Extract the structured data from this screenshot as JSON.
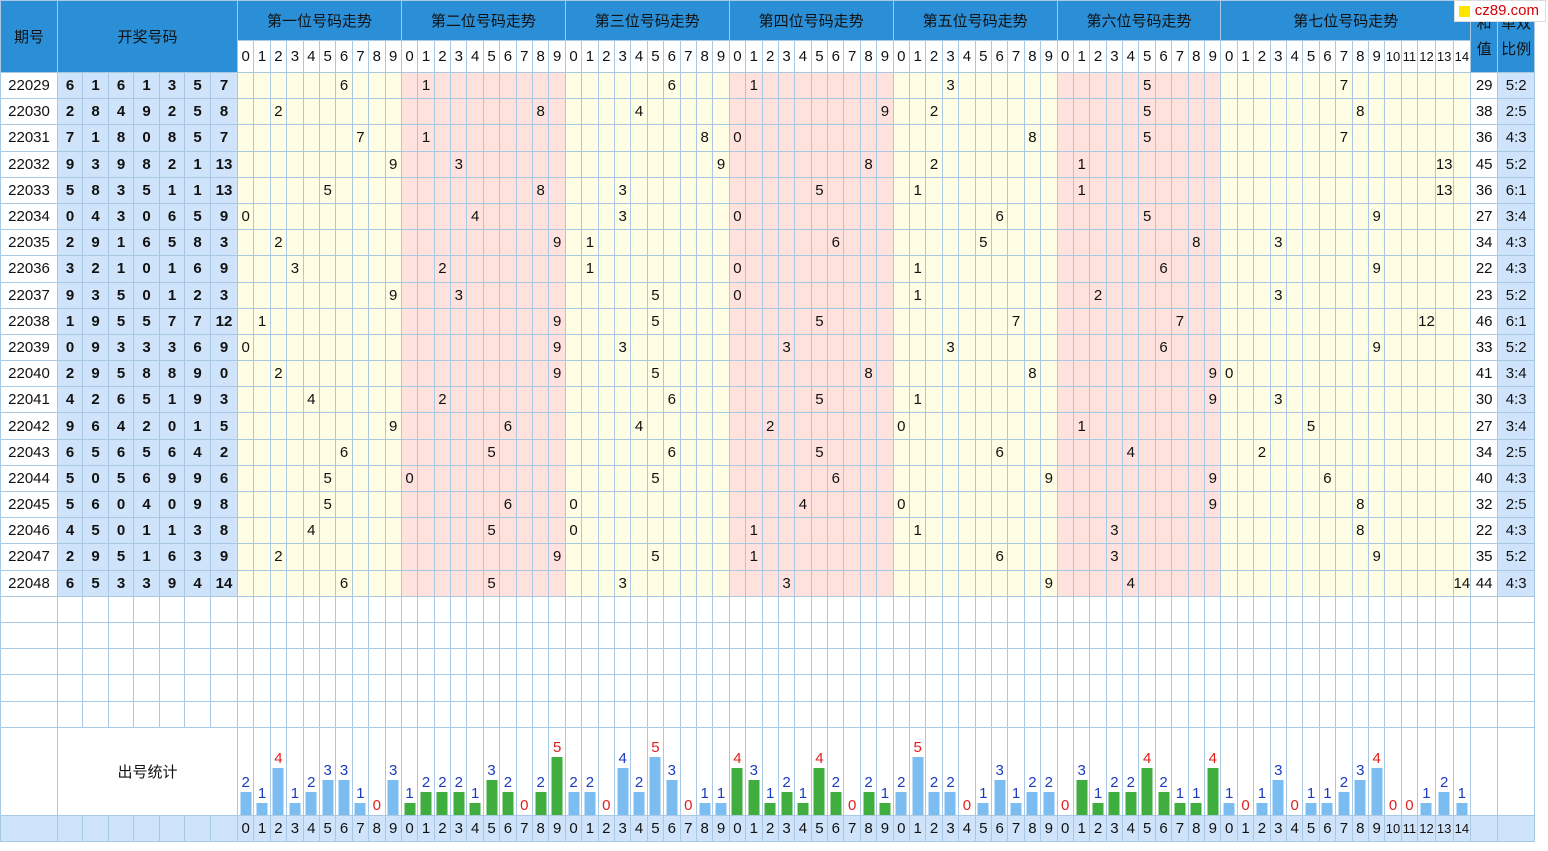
{
  "logo": "cz89.com",
  "headers": {
    "period": "期号",
    "draw": "开奖号码",
    "sum": "和值",
    "ratio": "单双比例",
    "stats": "出号统计"
  },
  "positions": [
    {
      "title": "第一位号码走势",
      "digits": [
        "0",
        "1",
        "2",
        "3",
        "4",
        "5",
        "6",
        "7",
        "8",
        "9"
      ],
      "tint": "#fffde3"
    },
    {
      "title": "第二位号码走势",
      "digits": [
        "0",
        "1",
        "2",
        "3",
        "4",
        "5",
        "6",
        "7",
        "8",
        "9"
      ],
      "tint": "#ffe2de"
    },
    {
      "title": "第三位号码走势",
      "digits": [
        "0",
        "1",
        "2",
        "3",
        "4",
        "5",
        "6",
        "7",
        "8",
        "9"
      ],
      "tint": "#fffde3"
    },
    {
      "title": "第四位号码走势",
      "digits": [
        "0",
        "1",
        "2",
        "3",
        "4",
        "5",
        "6",
        "7",
        "8",
        "9"
      ],
      "tint": "#ffe2de"
    },
    {
      "title": "第五位号码走势",
      "digits": [
        "0",
        "1",
        "2",
        "3",
        "4",
        "5",
        "6",
        "7",
        "8",
        "9"
      ],
      "tint": "#fffde3"
    },
    {
      "title": "第六位号码走势",
      "digits": [
        "0",
        "1",
        "2",
        "3",
        "4",
        "5",
        "6",
        "7",
        "8",
        "9"
      ],
      "tint": "#ffe2de"
    },
    {
      "title": "第七位号码走势",
      "digits": [
        "0",
        "1",
        "2",
        "3",
        "4",
        "5",
        "6",
        "7",
        "8",
        "9",
        "10",
        "11",
        "12",
        "13",
        "14"
      ],
      "tint": "#fffde3"
    }
  ],
  "rows": [
    {
      "period": "22029",
      "nums": [
        "6",
        "1",
        "6",
        "1",
        "3",
        "5",
        "7"
      ],
      "sum": "29",
      "ratio": "5:2"
    },
    {
      "period": "22030",
      "nums": [
        "2",
        "8",
        "4",
        "9",
        "2",
        "5",
        "8"
      ],
      "sum": "38",
      "ratio": "2:5"
    },
    {
      "period": "22031",
      "nums": [
        "7",
        "1",
        "8",
        "0",
        "8",
        "5",
        "7"
      ],
      "sum": "36",
      "ratio": "4:3"
    },
    {
      "period": "22032",
      "nums": [
        "9",
        "3",
        "9",
        "8",
        "2",
        "1",
        "13"
      ],
      "sum": "45",
      "ratio": "5:2"
    },
    {
      "period": "22033",
      "nums": [
        "5",
        "8",
        "3",
        "5",
        "1",
        "1",
        "13"
      ],
      "sum": "36",
      "ratio": "6:1"
    },
    {
      "period": "22034",
      "nums": [
        "0",
        "4",
        "3",
        "0",
        "6",
        "5",
        "9"
      ],
      "sum": "27",
      "ratio": "3:4"
    },
    {
      "period": "22035",
      "nums": [
        "2",
        "9",
        "1",
        "6",
        "5",
        "8",
        "3"
      ],
      "sum": "34",
      "ratio": "4:3"
    },
    {
      "period": "22036",
      "nums": [
        "3",
        "2",
        "1",
        "0",
        "1",
        "6",
        "9"
      ],
      "sum": "22",
      "ratio": "4:3"
    },
    {
      "period": "22037",
      "nums": [
        "9",
        "3",
        "5",
        "0",
        "1",
        "2",
        "3"
      ],
      "sum": "23",
      "ratio": "5:2"
    },
    {
      "period": "22038",
      "nums": [
        "1",
        "9",
        "5",
        "5",
        "7",
        "7",
        "12"
      ],
      "sum": "46",
      "ratio": "6:1"
    },
    {
      "period": "22039",
      "nums": [
        "0",
        "9",
        "3",
        "3",
        "3",
        "6",
        "9"
      ],
      "sum": "33",
      "ratio": "5:2"
    },
    {
      "period": "22040",
      "nums": [
        "2",
        "9",
        "5",
        "8",
        "8",
        "9",
        "0"
      ],
      "sum": "41",
      "ratio": "3:4"
    },
    {
      "period": "22041",
      "nums": [
        "4",
        "2",
        "6",
        "5",
        "1",
        "9",
        "3"
      ],
      "sum": "30",
      "ratio": "4:3"
    },
    {
      "period": "22042",
      "nums": [
        "9",
        "6",
        "4",
        "2",
        "0",
        "1",
        "5"
      ],
      "sum": "27",
      "ratio": "3:4"
    },
    {
      "period": "22043",
      "nums": [
        "6",
        "5",
        "6",
        "5",
        "6",
        "4",
        "2"
      ],
      "sum": "34",
      "ratio": "2:5"
    },
    {
      "period": "22044",
      "nums": [
        "5",
        "0",
        "5",
        "6",
        "9",
        "9",
        "6"
      ],
      "sum": "40",
      "ratio": "4:3"
    },
    {
      "period": "22045",
      "nums": [
        "5",
        "6",
        "0",
        "4",
        "0",
        "9",
        "8"
      ],
      "sum": "32",
      "ratio": "2:5"
    },
    {
      "period": "22046",
      "nums": [
        "4",
        "5",
        "0",
        "1",
        "1",
        "3",
        "8"
      ],
      "sum": "22",
      "ratio": "4:3"
    },
    {
      "period": "22047",
      "nums": [
        "2",
        "9",
        "5",
        "1",
        "6",
        "3",
        "9"
      ],
      "sum": "35",
      "ratio": "5:2"
    },
    {
      "period": "22048",
      "nums": [
        "6",
        "5",
        "3",
        "3",
        "9",
        "4",
        "14"
      ],
      "sum": "44",
      "ratio": "4:3"
    }
  ],
  "stats": [
    [
      "2",
      "1",
      "4",
      "1",
      "2",
      "3",
      "3",
      "1",
      "0",
      "3"
    ],
    [
      "1",
      "2",
      "2",
      "2",
      "1",
      "3",
      "2",
      "0",
      "2",
      "5"
    ],
    [
      "2",
      "2",
      "0",
      "4",
      "2",
      "5",
      "3",
      "0",
      "1",
      "1"
    ],
    [
      "4",
      "3",
      "1",
      "2",
      "1",
      "4",
      "2",
      "0",
      "2",
      "1"
    ],
    [
      "2",
      "5",
      "2",
      "2",
      "0",
      "1",
      "3",
      "1",
      "2",
      "2"
    ],
    [
      "0",
      "3",
      "1",
      "2",
      "2",
      "4",
      "2",
      "1",
      "1",
      "4"
    ],
    [
      "1",
      "0",
      "1",
      "3",
      "0",
      "1",
      "1",
      "2",
      "3",
      "4",
      "0",
      "0",
      "1",
      "2",
      "1"
    ]
  ],
  "colors": {
    "header": "#2b8fd8",
    "drawCell": "#cfe4fa",
    "tintYellow": "#fffde3",
    "tintPink": "#ffe2de",
    "barBlue": "#7bbdf0",
    "barGreen": "#3fae3f",
    "statBlue": "#1a3cbf",
    "statRed": "#e02020"
  },
  "emptyRows": 5
}
